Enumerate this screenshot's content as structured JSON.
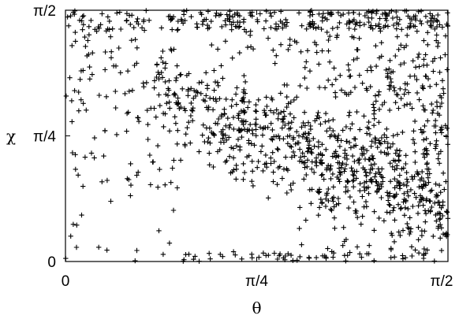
{
  "chart_data": {
    "type": "scatter",
    "marker": "+",
    "marker_color": "#000000",
    "background": "#ffffff",
    "xlabel": "θ",
    "ylabel": "χ",
    "xlim": [
      0,
      1.5707963
    ],
    "ylim": [
      0,
      1.5707963
    ],
    "xticks": [
      {
        "value": 0,
        "label": "0"
      },
      {
        "value": 0.7853982,
        "label": "π/4"
      },
      {
        "value": 1.5707963,
        "label": "π/2"
      }
    ],
    "yticks": [
      {
        "value": 0,
        "label": "0"
      },
      {
        "value": 0.7853982,
        "label": "π/4"
      },
      {
        "value": 1.5707963,
        "label": "π/2"
      }
    ],
    "grid": false,
    "legend": "none",
    "series": [
      {
        "points_regions": [
          {
            "region": "top band",
            "x": [
              0.1,
              1.57
            ],
            "y": [
              1.45,
              1.57
            ]
          },
          {
            "region": "dense diagonal",
            "x": [
              0.4,
              1.5
            ],
            "y": [
              0.3,
              1.3
            ]
          },
          {
            "region": "lower right",
            "x": [
              0.9,
              1.57
            ],
            "y": [
              0.0,
              0.5
            ]
          },
          {
            "region": "sparse left",
            "x": [
              0.0,
              0.4
            ],
            "y": [
              0.05,
              1.5
            ]
          },
          {
            "region": "bottom edge",
            "x": [
              0.45,
              1.4
            ],
            "y": [
              0.02,
              0.06
            ]
          }
        ]
      }
    ]
  }
}
